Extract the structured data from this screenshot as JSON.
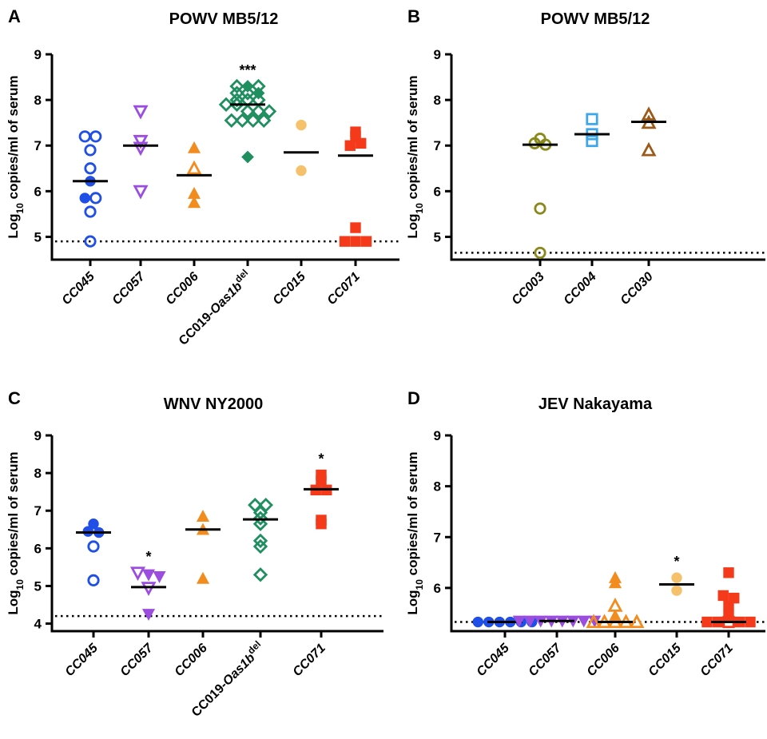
{
  "panels": [
    {
      "letter": "A",
      "title": "POWV MB5/12",
      "ylabel": "Log10 copies/ml of serum",
      "ylim": [
        4.5,
        9
      ],
      "yticks": [
        5,
        6,
        7,
        8,
        9
      ],
      "detection_limit": 4.9,
      "categories": [
        {
          "label": "CC045",
          "color": "#1f4fe6",
          "median": 6.22,
          "significance": "",
          "points": [
            {
              "v": 7.2,
              "f": false
            },
            {
              "v": 7.2,
              "f": false
            },
            {
              "v": 6.9,
              "f": false
            },
            {
              "v": 6.5,
              "f": false
            },
            {
              "v": 6.22,
              "f": true
            },
            {
              "v": 5.85,
              "f": true
            },
            {
              "v": 5.85,
              "f": false
            },
            {
              "v": 5.55,
              "f": false
            },
            {
              "v": 4.9,
              "f": false
            }
          ]
        },
        {
          "label": "CC057",
          "color": "#9b4de0",
          "median": 7.0,
          "significance": "",
          "points": [
            {
              "v": 7.75,
              "f": false
            },
            {
              "v": 7.1,
              "f": false
            },
            {
              "v": 6.95,
              "f": false
            },
            {
              "v": 6.0,
              "f": false
            }
          ]
        },
        {
          "label": "CC006",
          "color": "#f28c1e",
          "median": 6.35,
          "significance": "",
          "points": [
            {
              "v": 6.95,
              "f": true
            },
            {
              "v": 6.5,
              "f": false
            },
            {
              "v": 5.95,
              "f": true
            },
            {
              "v": 5.75,
              "f": true
            }
          ]
        },
        {
          "label": "CC019-Oas1bdel",
          "color": "#1f8f5f",
          "median": 7.9,
          "significance": "***",
          "points": [
            {
              "v": 8.3,
              "f": false
            },
            {
              "v": 8.3,
              "f": true
            },
            {
              "v": 8.3,
              "f": false
            },
            {
              "v": 8.15,
              "f": false
            },
            {
              "v": 8.15,
              "f": false
            },
            {
              "v": 8.15,
              "f": true
            },
            {
              "v": 8.0,
              "f": false
            },
            {
              "v": 8.0,
              "f": false
            },
            {
              "v": 8.0,
              "f": false
            },
            {
              "v": 7.9,
              "f": false
            },
            {
              "v": 7.9,
              "f": false
            },
            {
              "v": 7.75,
              "f": false
            },
            {
              "v": 7.75,
              "f": false
            },
            {
              "v": 7.75,
              "f": false
            },
            {
              "v": 7.55,
              "f": false
            },
            {
              "v": 7.55,
              "f": false
            },
            {
              "v": 7.55,
              "f": false
            },
            {
              "v": 7.55,
              "f": false
            },
            {
              "v": 6.75,
              "f": true
            }
          ]
        },
        {
          "label": "CC015",
          "color": "#f5c26b",
          "median": 6.85,
          "significance": "",
          "points": [
            {
              "v": 7.45,
              "f": true
            },
            {
              "v": 6.45,
              "f": true
            }
          ]
        },
        {
          "label": "CC071",
          "color": "#f43a1a",
          "median": 6.78,
          "significance": "",
          "points": [
            {
              "v": 7.3,
              "f": true
            },
            {
              "v": 7.2,
              "f": true
            },
            {
              "v": 7.0,
              "f": true
            },
            {
              "v": 7.05,
              "f": true
            },
            {
              "v": 5.2,
              "f": true
            },
            {
              "v": 4.9,
              "f": true
            },
            {
              "v": 4.9,
              "f": true
            },
            {
              "v": 4.9,
              "f": true
            }
          ]
        }
      ]
    },
    {
      "letter": "B",
      "title": "POWV MB5/12",
      "ylabel": "Log10 copies/ml of serum",
      "ylim": [
        4.5,
        9
      ],
      "yticks": [
        5,
        6,
        7,
        8,
        9
      ],
      "detection_limit": 4.65,
      "categories": [
        {
          "label": "CC003",
          "color": "#8a8a1c",
          "median": 7.02,
          "significance": "",
          "points": [
            {
              "v": 7.15,
              "f": false
            },
            {
              "v": 7.05,
              "f": false
            },
            {
              "v": 7.02,
              "f": false
            },
            {
              "v": 5.62,
              "f": false
            },
            {
              "v": 4.65,
              "f": false
            }
          ]
        },
        {
          "label": "CC004",
          "color": "#3ea7e9",
          "median": 7.25,
          "significance": "",
          "points": [
            {
              "v": 7.58,
              "f": false
            },
            {
              "v": 7.25,
              "f": false
            },
            {
              "v": 7.1,
              "f": false
            }
          ]
        },
        {
          "label": "CC030",
          "color": "#9c5a1a",
          "median": 7.52,
          "significance": "",
          "points": [
            {
              "v": 7.68,
              "f": false
            },
            {
              "v": 7.5,
              "f": false
            },
            {
              "v": 6.9,
              "f": false
            }
          ]
        }
      ]
    },
    {
      "letter": "C",
      "title": "WNV NY2000",
      "ylabel": "Log10 copies/ml of serum",
      "ylim": [
        3.8,
        9
      ],
      "yticks": [
        4,
        5,
        6,
        7,
        8,
        9
      ],
      "detection_limit": 4.2,
      "categories": [
        {
          "label": "CC045",
          "color": "#1f4fe6",
          "median": 6.42,
          "significance": "",
          "points": [
            {
              "v": 6.65,
              "f": true
            },
            {
              "v": 6.45,
              "f": true
            },
            {
              "v": 6.42,
              "f": true
            },
            {
              "v": 6.05,
              "f": false
            },
            {
              "v": 5.15,
              "f": false
            }
          ]
        },
        {
          "label": "CC057",
          "color": "#9b4de0",
          "median": 4.97,
          "significance": "*",
          "points": [
            {
              "v": 5.35,
              "f": false
            },
            {
              "v": 5.3,
              "f": true
            },
            {
              "v": 5.25,
              "f": true
            },
            {
              "v": 4.95,
              "f": false
            },
            {
              "v": 4.25,
              "f": true
            }
          ]
        },
        {
          "label": "CC006",
          "color": "#f28c1e",
          "median": 6.5,
          "significance": "",
          "points": [
            {
              "v": 6.85,
              "f": true
            },
            {
              "v": 6.5,
              "f": true
            },
            {
              "v": 5.2,
              "f": true
            }
          ]
        },
        {
          "label": "CC019-Oas1bdel",
          "color": "#1f8f5f",
          "median": 6.77,
          "significance": "",
          "points": [
            {
              "v": 7.15,
              "f": false
            },
            {
              "v": 7.15,
              "f": false
            },
            {
              "v": 6.95,
              "f": false
            },
            {
              "v": 6.8,
              "f": false
            },
            {
              "v": 6.65,
              "f": false
            },
            {
              "v": 6.2,
              "f": false
            },
            {
              "v": 6.05,
              "f": false
            },
            {
              "v": 5.3,
              "f": false
            }
          ]
        },
        {
          "label": "CC071",
          "color": "#f43a1a",
          "median": 7.57,
          "significance": "*",
          "points": [
            {
              "v": 7.95,
              "f": true
            },
            {
              "v": 7.8,
              "f": true
            },
            {
              "v": 7.55,
              "f": true
            },
            {
              "v": 7.55,
              "f": true
            },
            {
              "v": 6.75,
              "f": true
            },
            {
              "v": 6.65,
              "f": true
            }
          ]
        }
      ]
    },
    {
      "letter": "D",
      "title": "JEV Nakayama",
      "ylabel": "Log10 copies/ml of serum",
      "ylim": [
        5.15,
        9
      ],
      "yticks": [
        6,
        7,
        8,
        9
      ],
      "detection_limit": 5.33,
      "categories": [
        {
          "label": "CC045",
          "color": "#1f4fe6",
          "median": 5.33,
          "significance": "",
          "points": [
            {
              "v": 5.33,
              "f": true
            },
            {
              "v": 5.33,
              "f": true
            },
            {
              "v": 5.33,
              "f": true
            },
            {
              "v": 5.33,
              "f": true
            },
            {
              "v": 5.33,
              "f": true
            },
            {
              "v": 5.33,
              "f": true
            }
          ]
        },
        {
          "label": "CC057",
          "color": "#9b4de0",
          "median": 5.35,
          "significance": "",
          "points": [
            {
              "v": 5.35,
              "f": true
            },
            {
              "v": 5.35,
              "f": true
            },
            {
              "v": 5.35,
              "f": true
            },
            {
              "v": 5.35,
              "f": true
            },
            {
              "v": 5.35,
              "f": true
            },
            {
              "v": 5.35,
              "f": true
            },
            {
              "v": 5.35,
              "f": true
            },
            {
              "v": 5.35,
              "f": true
            }
          ]
        },
        {
          "label": "CC006",
          "color": "#f28c1e",
          "median": 5.33,
          "significance": "",
          "points": [
            {
              "v": 6.2,
              "f": true
            },
            {
              "v": 6.1,
              "f": true
            },
            {
              "v": 5.65,
              "f": false
            },
            {
              "v": 5.45,
              "f": true
            },
            {
              "v": 5.33,
              "f": false
            },
            {
              "v": 5.33,
              "f": false
            },
            {
              "v": 5.33,
              "f": false
            },
            {
              "v": 5.33,
              "f": false
            },
            {
              "v": 5.33,
              "f": false
            }
          ]
        },
        {
          "label": "CC015",
          "color": "#f5c26b",
          "median": 6.07,
          "significance": "*",
          "points": [
            {
              "v": 6.2,
              "f": true
            },
            {
              "v": 5.95,
              "f": true
            }
          ]
        },
        {
          "label": "CC071",
          "color": "#f43a1a",
          "median": 5.33,
          "significance": "",
          "points": [
            {
              "v": 6.3,
              "f": true
            },
            {
              "v": 5.85,
              "f": true
            },
            {
              "v": 5.8,
              "f": true
            },
            {
              "v": 5.65,
              "f": true
            },
            {
              "v": 5.45,
              "f": true
            },
            {
              "v": 5.33,
              "f": true
            },
            {
              "v": 5.33,
              "f": true
            },
            {
              "v": 5.33,
              "f": false
            },
            {
              "v": 5.33,
              "f": true
            },
            {
              "v": 5.33,
              "f": true
            }
          ]
        }
      ]
    }
  ],
  "chart_data": [
    {
      "type": "scatter",
      "title": "POWV MB5/12",
      "ylabel": "Log10 copies/ml of serum",
      "categories": [
        "CC045",
        "CC057",
        "CC006",
        "CC019-Oas1bdel",
        "CC015",
        "CC071"
      ],
      "medians": [
        6.22,
        7.0,
        6.35,
        7.9,
        6.85,
        6.78
      ],
      "ylim": [
        4.5,
        9
      ],
      "detection_limit": 4.9
    },
    {
      "type": "scatter",
      "title": "POWV MB5/12",
      "ylabel": "Log10 copies/ml of serum",
      "categories": [
        "CC003",
        "CC004",
        "CC030"
      ],
      "medians": [
        7.02,
        7.25,
        7.52
      ],
      "ylim": [
        4.5,
        9
      ],
      "detection_limit": 4.65
    },
    {
      "type": "scatter",
      "title": "WNV NY2000",
      "ylabel": "Log10 copies/ml of serum",
      "categories": [
        "CC045",
        "CC057",
        "CC006",
        "CC019-Oas1bdel",
        "CC071"
      ],
      "medians": [
        6.42,
        4.97,
        6.5,
        6.77,
        7.57
      ],
      "ylim": [
        3.8,
        9
      ],
      "detection_limit": 4.2
    },
    {
      "type": "scatter",
      "title": "JEV Nakayama",
      "ylabel": "Log10 copies/ml of serum",
      "categories": [
        "CC045",
        "CC057",
        "CC006",
        "CC015",
        "CC071"
      ],
      "medians": [
        5.33,
        5.35,
        5.33,
        6.07,
        5.33
      ],
      "ylim": [
        5.15,
        9
      ],
      "detection_limit": 5.33
    }
  ]
}
